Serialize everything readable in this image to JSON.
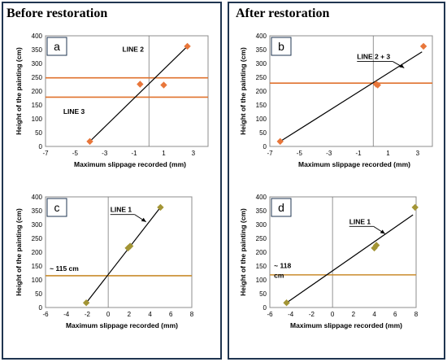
{
  "sections": {
    "before": "Before restoration",
    "after": "After restoration"
  },
  "colors": {
    "frame": "#1f3550",
    "plot_border": "#8c8c8c",
    "orange_line": "#e0722e",
    "tan_line": "#c98b2c",
    "diamond_orange": "#e8763a",
    "diamond_olive": "#a39535",
    "fit_line": "#000000"
  },
  "chart_data": [
    {
      "id": "a",
      "type": "scatter",
      "panel_label": "a",
      "xlabel": "Maximum slippage recorded (mm)",
      "ylabel": "Height of the painting (cm)",
      "xlim": [
        -7,
        4
      ],
      "ylim": [
        0,
        400
      ],
      "xticks": [
        -7,
        -5,
        -3,
        -1,
        1,
        3
      ],
      "yticks": [
        0,
        50,
        100,
        150,
        200,
        250,
        300,
        350,
        400
      ],
      "points": [
        {
          "x": -4.0,
          "y": 18
        },
        {
          "x": -0.6,
          "y": 225
        },
        {
          "x": 1.0,
          "y": 222
        },
        {
          "x": 2.6,
          "y": 362
        }
      ],
      "marker_color": "#e8763a",
      "fit_line": {
        "x1": -4.0,
        "y1": 18,
        "x2": 2.6,
        "y2": 362
      },
      "horizontal_lines": [
        {
          "y": 248,
          "color": "#e0722e"
        },
        {
          "y": 178,
          "color": "#e0722e"
        }
      ],
      "annotations": [
        {
          "text": "LINE 2",
          "x": -1.8,
          "y": 342
        },
        {
          "text": "LINE 3",
          "x": -5.8,
          "y": 118
        }
      ]
    },
    {
      "id": "b",
      "type": "scatter",
      "panel_label": "b",
      "xlabel": "Maximum slippage recorded (mm)",
      "ylabel": "Height of the painting (cm)",
      "xlim": [
        -7,
        4
      ],
      "ylim": [
        0,
        400
      ],
      "xticks": [
        -7,
        -5,
        -3,
        -1,
        1,
        3
      ],
      "yticks": [
        0,
        50,
        100,
        150,
        200,
        250,
        300,
        350,
        400
      ],
      "points": [
        {
          "x": -6.3,
          "y": 18
        },
        {
          "x": 0.2,
          "y": 225
        },
        {
          "x": 0.3,
          "y": 222
        },
        {
          "x": 3.4,
          "y": 362
        }
      ],
      "marker_color": "#e8763a",
      "fit_line": {
        "x1": -6.3,
        "y1": 18,
        "x2": 3.3,
        "y2": 342
      },
      "horizontal_lines": [
        {
          "y": 229,
          "color": "#e0722e"
        }
      ],
      "annotations": [
        {
          "text": "LINE 2 + 3",
          "x": -1.1,
          "y": 316
        }
      ]
    },
    {
      "id": "c",
      "type": "scatter",
      "panel_label": "c",
      "xlabel": "Maximum slippage recorded (mm)",
      "ylabel": "Height of the painting (cm)",
      "xlim": [
        -6,
        8
      ],
      "ylim": [
        0,
        400
      ],
      "xticks": [
        -6,
        -4,
        -2,
        0,
        2,
        4,
        6,
        8
      ],
      "yticks": [
        0,
        50,
        100,
        150,
        200,
        250,
        300,
        350,
        400
      ],
      "points": [
        {
          "x": -2.1,
          "y": 17
        },
        {
          "x": 1.9,
          "y": 215
        },
        {
          "x": 2.1,
          "y": 222
        },
        {
          "x": 5.0,
          "y": 362
        }
      ],
      "marker_color": "#a39535",
      "fit_line": {
        "x1": -2.1,
        "y1": 17,
        "x2": 5.0,
        "y2": 362
      },
      "horizontal_lines": [
        {
          "y": 115,
          "color": "#c98b2c"
        }
      ],
      "annotations": [
        {
          "text": "LINE 1",
          "x": 0.2,
          "y": 345
        },
        {
          "text": "~ 115 cm",
          "x": -5.6,
          "y": 133
        }
      ]
    },
    {
      "id": "d",
      "type": "scatter",
      "panel_label": "d",
      "xlabel": "Maximum slippage recorded (mm)",
      "ylabel": "Height of the painting (cm)",
      "xlim": [
        -6,
        8
      ],
      "ylim": [
        0,
        400
      ],
      "xticks": [
        -6,
        -4,
        -2,
        0,
        2,
        4,
        6,
        8
      ],
      "yticks": [
        0,
        50,
        100,
        150,
        200,
        250,
        300,
        350,
        400
      ],
      "points": [
        {
          "x": -4.4,
          "y": 17
        },
        {
          "x": 4.0,
          "y": 215
        },
        {
          "x": 4.2,
          "y": 225
        },
        {
          "x": 7.9,
          "y": 362
        }
      ],
      "marker_color": "#a39535",
      "fit_line": {
        "x1": -4.4,
        "y1": 17,
        "x2": 7.7,
        "y2": 335
      },
      "horizontal_lines": [
        {
          "y": 118,
          "color": "#c98b2c"
        }
      ],
      "annotations": [
        {
          "text": "LINE 1",
          "x": 1.6,
          "y": 302
        },
        {
          "text": "~ 118",
          "x": -5.6,
          "y": 143
        },
        {
          "text": "cm",
          "x": -5.6,
          "y": 108
        }
      ]
    }
  ]
}
